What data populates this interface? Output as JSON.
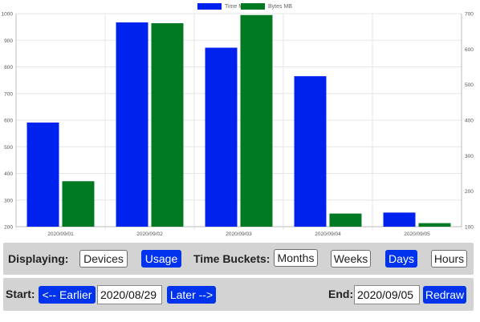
{
  "chart_data": {
    "type": "bar",
    "categories": [
      "2020/09/01",
      "2020/09/02",
      "2020/09/03",
      "2020/09/04",
      "2020/09/05"
    ],
    "series": [
      {
        "name": "Time Min",
        "axis": "left",
        "color": "#0022ee",
        "values": [
          591,
          967,
          872,
          765,
          253
        ]
      },
      {
        "name": "Bytes MB",
        "axis": "right",
        "color": "#007a22",
        "values": [
          228,
          673,
          696,
          137,
          110
        ]
      }
    ],
    "y_left": {
      "min": 200,
      "max": 1000,
      "ticks": [
        200,
        300,
        400,
        500,
        600,
        700,
        800,
        900,
        1000
      ]
    },
    "y_right": {
      "min": 100,
      "max": 700,
      "ticks": [
        100,
        200,
        300,
        400,
        500,
        600,
        700
      ]
    },
    "grid": true,
    "legend": "top-center",
    "title": "",
    "xlabel": "",
    "ylabel": ""
  },
  "controls": {
    "displaying_label": "Displaying:",
    "devices_label": "Devices",
    "usage_label": "Usage",
    "time_buckets_label": "Time Buckets:",
    "months_label": "Months",
    "weeks_label": "Weeks",
    "days_label": "Days",
    "hours_label": "Hours",
    "active_display": "Usage",
    "active_bucket": "Days"
  },
  "navigation": {
    "start_label": "Start:",
    "earlier_label": "<-- Earlier",
    "start_date": "2020/08/29",
    "later_label": "Later -->",
    "end_label": "End:",
    "end_date": "2020/09/05",
    "redraw_label": "Redraw"
  },
  "colors": {
    "accent": "#0033ee",
    "panel_bg": "#d3d3d3"
  }
}
